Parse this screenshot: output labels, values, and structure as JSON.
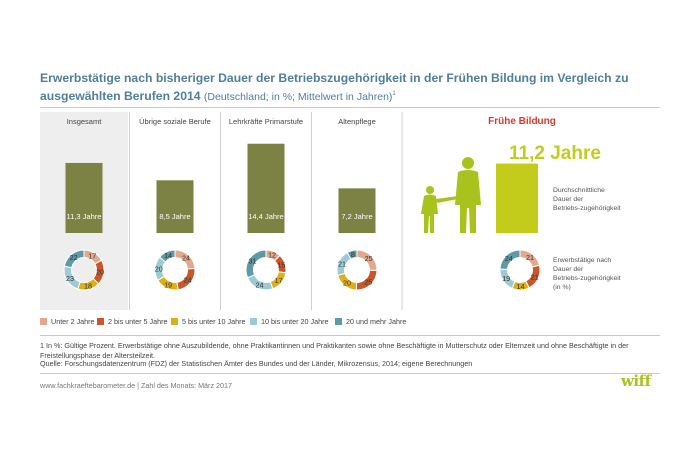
{
  "header": {
    "title": "Erwerbstätige nach bisheriger Dauer der Betriebszugehörigkeit in der Frühen Bildung im Vergleich zu ausgewählten Berufen 2014",
    "subtitle": "(Deutschland; in %; Mittelwert in Jahren)",
    "footnote_mark": "1"
  },
  "colors": {
    "bar": "#7c8244",
    "highlight_bar": "#c3cc1a",
    "panel_bg": "#eeeeee",
    "title": "#4f7f9a",
    "accent_red": "#d23c2a",
    "figure_green": "#a9c31c",
    "segments": [
      "#e3a98a",
      "#c8572c",
      "#e0ae16",
      "#9ccbd5",
      "#5e9aa6"
    ]
  },
  "chart_data": {
    "type": "bar",
    "categories": [
      "Insgesamt",
      "Übrige soziale Berufe",
      "Lehrkräfte Primarstufe",
      "Altenpflege"
    ],
    "values": [
      11.3,
      8.5,
      14.4,
      7.2
    ],
    "value_labels": [
      "11,3 Jahre",
      "8,5 Jahre",
      "14,4 Jahre",
      "7,2 Jahre"
    ],
    "ylim": [
      0,
      16
    ],
    "highlight": {
      "label": "Frühe Bildung",
      "value": 11.2,
      "value_label": "11,2 Jahre",
      "bar_caption": "Durchschnittliche Dauer der Betriebs-zugehörigkeit",
      "donut_caption": "Erwerbstätige nach Dauer der Betriebs-zugehörigkeit (in %)"
    },
    "donut_legend": [
      "Unter 2 Jahre",
      "2 bis unter 5 Jahre",
      "5 bis unter 10 Jahre",
      "10 bis unter 20 Jahre",
      "20 und mehr Jahre"
    ],
    "donuts": [
      {
        "group": "Insgesamt",
        "values": [
          17,
          20,
          18,
          23,
          22
        ]
      },
      {
        "group": "Übrige soziale Berufe",
        "values": [
          24,
          24,
          19,
          20,
          14
        ]
      },
      {
        "group": "Lehrkräfte Primarstufe",
        "values": [
          12,
          15,
          17,
          24,
          31
        ]
      },
      {
        "group": "Altenpflege",
        "values": [
          25,
          25,
          20,
          21,
          8
        ]
      },
      {
        "group": "Frühe Bildung",
        "values": [
          21,
          21,
          14,
          19,
          24
        ]
      }
    ]
  },
  "footer": {
    "footnote": "1   In %: Gültige Prozent. Erwerbstätige ohne Auszubildende, ohne Praktikantinnen und Praktikanten sowie ohne Beschäftigte in Mutterschutz oder Elternzeit und ohne Beschäftigte in der Freistellungsphase der Altersteilzeit.",
    "source": "Quelle: Forschungsdatenzentrum (FDZ) der Statistischen Ämter des Bundes und der Länder, Mikrozensus, 2014; eigene Berechnungen",
    "website": "www.fachkraeftebarometer.de | Zahl des Monats: März 2017",
    "logo": "wiff"
  },
  "icons": {
    "family": "family-silhouette-icon"
  }
}
